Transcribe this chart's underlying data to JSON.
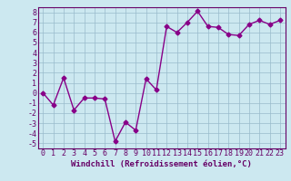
{
  "x": [
    0,
    1,
    2,
    3,
    4,
    5,
    6,
    7,
    8,
    9,
    10,
    11,
    12,
    13,
    14,
    15,
    16,
    17,
    18,
    19,
    20,
    21,
    22,
    23
  ],
  "y": [
    0,
    -1.2,
    1.5,
    -1.7,
    -0.5,
    -0.5,
    -0.6,
    -4.8,
    -2.9,
    -3.7,
    1.4,
    0.3,
    6.6,
    6.0,
    7.0,
    8.1,
    6.6,
    6.5,
    5.8,
    5.7,
    6.8,
    7.2,
    6.8,
    7.2
  ],
  "line_color": "#880088",
  "marker": "D",
  "markersize": 2.5,
  "linewidth": 1.0,
  "xlabel": "Windchill (Refroidissement éolien,°C)",
  "ylabel": "",
  "title": "",
  "xlim": [
    -0.5,
    23.5
  ],
  "ylim": [
    -5.5,
    8.5
  ],
  "yticks": [
    -5,
    -4,
    -3,
    -2,
    -1,
    0,
    1,
    2,
    3,
    4,
    5,
    6,
    7,
    8
  ],
  "xticks": [
    0,
    1,
    2,
    3,
    4,
    5,
    6,
    7,
    8,
    9,
    10,
    11,
    12,
    13,
    14,
    15,
    16,
    17,
    18,
    19,
    20,
    21,
    22,
    23
  ],
  "bg_color": "#cce8f0",
  "grid_color": "#99bbcc",
  "tick_color": "#660066",
  "label_color": "#660066",
  "xlabel_fontsize": 6.5,
  "tick_fontsize": 6.0
}
